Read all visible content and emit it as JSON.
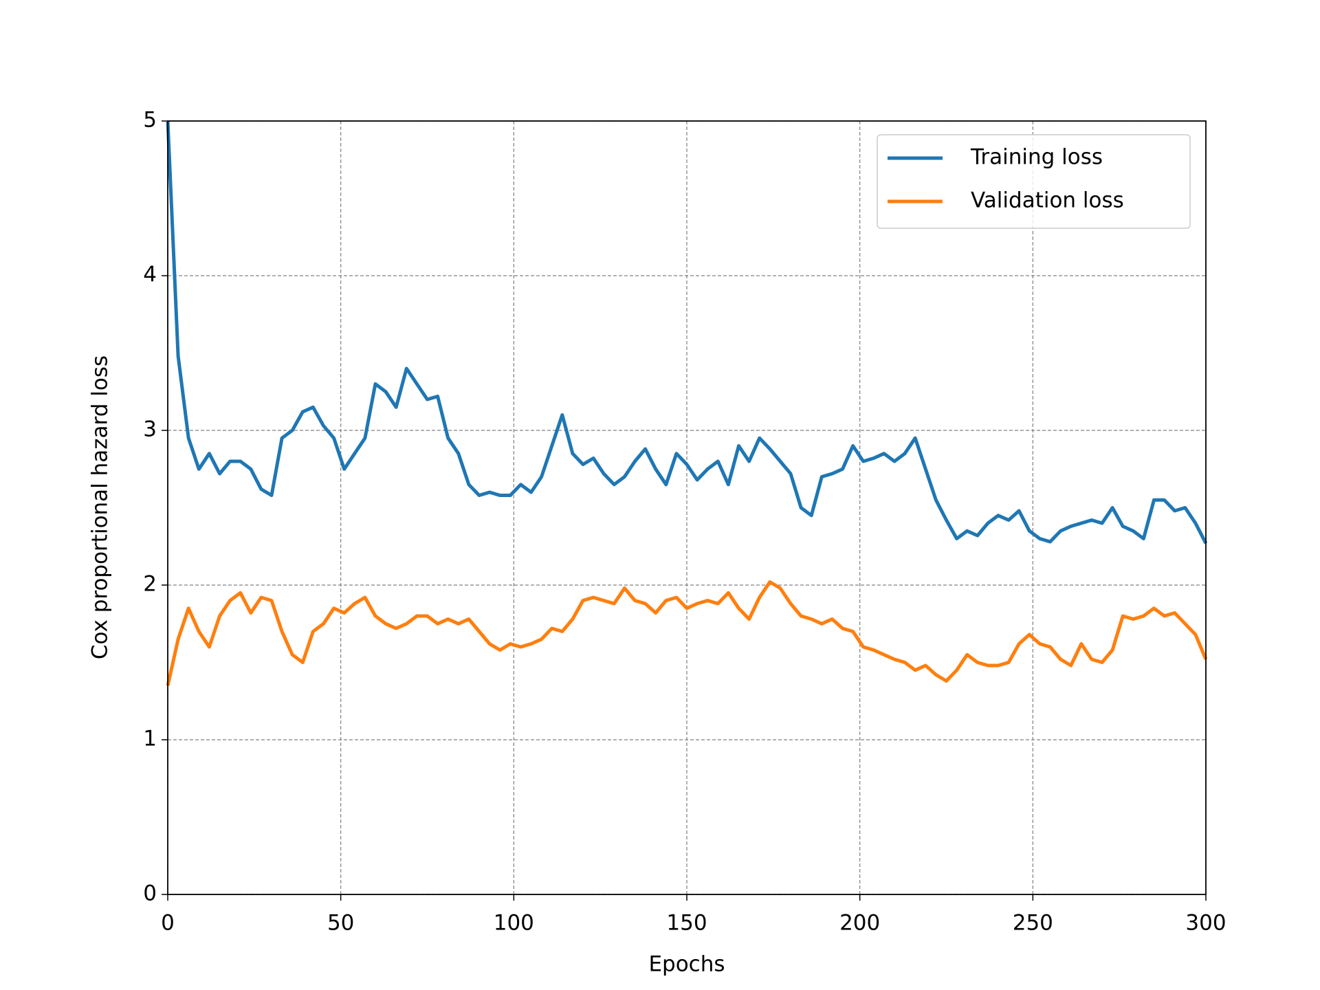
{
  "chart_data": {
    "type": "line",
    "xlabel": "Epochs",
    "ylabel": "Cox proportional hazard loss",
    "x": [
      0,
      3,
      6,
      9,
      12,
      15,
      18,
      21,
      24,
      27,
      30,
      33,
      36,
      39,
      42,
      45,
      48,
      51,
      54,
      57,
      60,
      63,
      66,
      69,
      72,
      75,
      78,
      81,
      84,
      87,
      90,
      93,
      96,
      99,
      102,
      105,
      108,
      111,
      114,
      117,
      120,
      123,
      126,
      129,
      132,
      135,
      138,
      141,
      144,
      147,
      150,
      153,
      156,
      159,
      162,
      165,
      168,
      171,
      174,
      177,
      180,
      183,
      186,
      189,
      192,
      195,
      198,
      201,
      204,
      207,
      210,
      213,
      216,
      219,
      222,
      225,
      228,
      231,
      234,
      237,
      240,
      243,
      246,
      249,
      252,
      255,
      258,
      261,
      264,
      267,
      270,
      273,
      276,
      279,
      282,
      285,
      288,
      291,
      294,
      297,
      300
    ],
    "series": [
      {
        "name": "Training loss",
        "color": "#1f77b4",
        "values": [
          5.0,
          3.48,
          2.95,
          2.75,
          2.85,
          2.72,
          2.8,
          2.8,
          2.75,
          2.62,
          2.58,
          2.95,
          3.0,
          3.12,
          3.15,
          3.03,
          2.95,
          2.75,
          2.85,
          2.95,
          3.3,
          3.25,
          3.15,
          3.4,
          3.3,
          3.2,
          3.22,
          2.95,
          2.85,
          2.65,
          2.58,
          2.6,
          2.58,
          2.58,
          2.65,
          2.6,
          2.7,
          2.9,
          3.1,
          2.85,
          2.78,
          2.82,
          2.72,
          2.65,
          2.7,
          2.8,
          2.88,
          2.75,
          2.65,
          2.85,
          2.78,
          2.68,
          2.75,
          2.8,
          2.65,
          2.9,
          2.8,
          2.95,
          2.88,
          2.8,
          2.72,
          2.5,
          2.45,
          2.7,
          2.72,
          2.75,
          2.9,
          2.8,
          2.82,
          2.85,
          2.8,
          2.85,
          2.95,
          2.75,
          2.55,
          2.42,
          2.3,
          2.35,
          2.32,
          2.4,
          2.45,
          2.42,
          2.48,
          2.35,
          2.3,
          2.28,
          2.35,
          2.38,
          2.4,
          2.42,
          2.4,
          2.5,
          2.38,
          2.35,
          2.3,
          2.55,
          2.55,
          2.48,
          2.5,
          2.4,
          2.27
        ]
      },
      {
        "name": "Validation loss",
        "color": "#ff7f0e",
        "values": [
          1.35,
          1.65,
          1.85,
          1.7,
          1.6,
          1.8,
          1.9,
          1.95,
          1.82,
          1.92,
          1.9,
          1.7,
          1.55,
          1.5,
          1.7,
          1.75,
          1.85,
          1.82,
          1.88,
          1.92,
          1.8,
          1.75,
          1.72,
          1.75,
          1.8,
          1.8,
          1.75,
          1.78,
          1.75,
          1.78,
          1.7,
          1.62,
          1.58,
          1.62,
          1.6,
          1.62,
          1.65,
          1.72,
          1.7,
          1.78,
          1.9,
          1.92,
          1.9,
          1.88,
          1.98,
          1.9,
          1.88,
          1.82,
          1.9,
          1.92,
          1.85,
          1.88,
          1.9,
          1.88,
          1.95,
          1.85,
          1.78,
          1.92,
          2.02,
          1.98,
          1.88,
          1.8,
          1.78,
          1.75,
          1.78,
          1.72,
          1.7,
          1.6,
          1.58,
          1.55,
          1.52,
          1.5,
          1.45,
          1.48,
          1.42,
          1.38,
          1.45,
          1.55,
          1.5,
          1.48,
          1.48,
          1.5,
          1.62,
          1.68,
          1.62,
          1.6,
          1.52,
          1.48,
          1.62,
          1.52,
          1.5,
          1.58,
          1.8,
          1.78,
          1.8,
          1.85,
          1.8,
          1.82,
          1.75,
          1.68,
          1.52
        ]
      }
    ],
    "xlim": [
      0,
      300
    ],
    "xticks": [
      0,
      50,
      100,
      150,
      200,
      250,
      300
    ],
    "ylim": [
      0,
      5
    ],
    "yticks": [
      0,
      1,
      2,
      3,
      4,
      5
    ],
    "grid": true,
    "legend": "upper right"
  }
}
